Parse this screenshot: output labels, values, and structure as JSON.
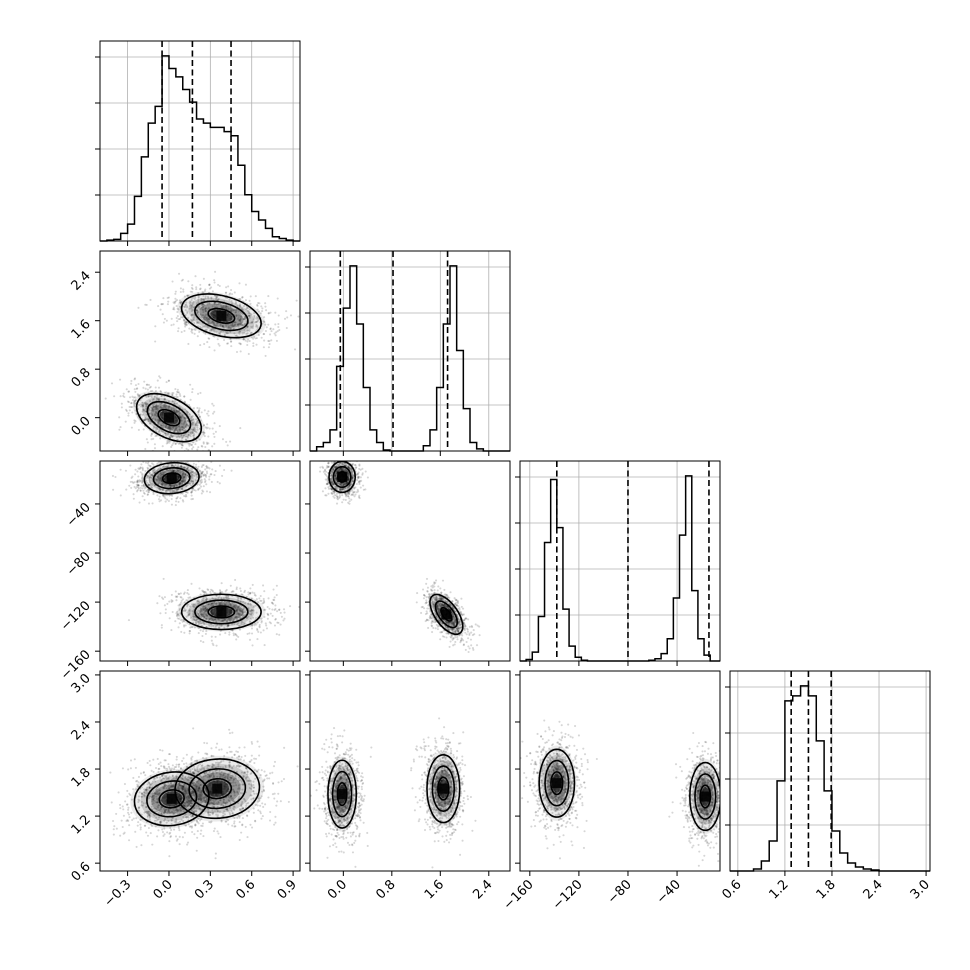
{
  "chart_data": {
    "type": "corner",
    "n_params": 4,
    "grid": true,
    "params": [
      {
        "range": [
          -0.5,
          0.95
        ],
        "ticks": [
          -0.3,
          0.0,
          0.3,
          0.6,
          0.9
        ],
        "tick_labels": [
          "−0.3",
          "0.0",
          "0.3",
          "0.6",
          "0.9"
        ],
        "quantiles": [
          -0.05,
          0.17,
          0.45
        ]
      },
      {
        "range": [
          -0.55,
          2.75
        ],
        "ticks": [
          0.0,
          0.8,
          1.6,
          2.4
        ],
        "tick_labels": [
          "0.0",
          "0.8",
          "1.6",
          "2.4"
        ],
        "quantiles": [
          -0.05,
          0.82,
          1.72
        ]
      },
      {
        "range": [
          -168,
          -5
        ],
        "ticks": [
          -160,
          -120,
          -80,
          -40
        ],
        "tick_labels": [
          "−160",
          "−120",
          "−80",
          "−40"
        ],
        "quantiles": [
          -138,
          -80,
          -14
        ]
      },
      {
        "range": [
          0.5,
          3.05
        ],
        "ticks": [
          0.6,
          1.2,
          1.8,
          2.4,
          3.0
        ],
        "tick_labels": [
          "0.6",
          "1.2",
          "1.8",
          "2.4",
          "3.0"
        ],
        "quantiles": [
          1.28,
          1.5,
          1.79
        ]
      }
    ],
    "histograms": [
      {
        "param": 0,
        "bin_edges": [
          -0.5,
          -0.45,
          -0.4,
          -0.35,
          -0.3,
          -0.25,
          -0.2,
          -0.15,
          -0.1,
          -0.05,
          0.0,
          0.05,
          0.1,
          0.15,
          0.2,
          0.25,
          0.3,
          0.35,
          0.4,
          0.45,
          0.5,
          0.55,
          0.6,
          0.65,
          0.7,
          0.75,
          0.8,
          0.85,
          0.9,
          0.95
        ],
        "counts": [
          0,
          1,
          2,
          9,
          20,
          53,
          100,
          140,
          160,
          220,
          205,
          195,
          180,
          165,
          145,
          140,
          135,
          135,
          130,
          125,
          90,
          55,
          35,
          25,
          15,
          5,
          3,
          1,
          0
        ]
      },
      {
        "param": 1,
        "bin_edges": [
          -0.55,
          -0.44,
          -0.33,
          -0.22,
          -0.11,
          0.0,
          0.11,
          0.22,
          0.33,
          0.44,
          0.55,
          0.66,
          0.77,
          0.88,
          0.99,
          1.1,
          1.21,
          1.32,
          1.43,
          1.54,
          1.65,
          1.76,
          1.87,
          1.98,
          2.09,
          2.2,
          2.31,
          2.42,
          2.53,
          2.64,
          2.75
        ],
        "counts": [
          0,
          4,
          8,
          20,
          80,
          135,
          175,
          120,
          60,
          20,
          8,
          1,
          0,
          0,
          0,
          0,
          0,
          5,
          20,
          60,
          120,
          175,
          95,
          40,
          8,
          2,
          0,
          0,
          0,
          0
        ]
      },
      {
        "param": 2,
        "bin_edges": [
          -168,
          -163,
          -158,
          -153,
          -148,
          -143,
          -138,
          -133,
          -128,
          -123,
          -118,
          -113,
          -108,
          -103,
          -98,
          -93,
          -88,
          -83,
          -78,
          -73,
          -68,
          -63,
          -58,
          -53,
          -48,
          -43,
          -38,
          -33,
          -28,
          -23,
          -18,
          -13,
          -8,
          -5
        ],
        "counts": [
          0,
          2,
          12,
          60,
          160,
          245,
          180,
          70,
          20,
          5,
          1,
          0,
          0,
          0,
          0,
          0,
          0,
          0,
          0,
          0,
          0,
          1,
          3,
          10,
          30,
          85,
          170,
          250,
          95,
          30,
          8,
          0,
          0
        ],
        "_note": ""
      },
      {
        "param": 3,
        "bin_edges": [
          0.5,
          0.6,
          0.7,
          0.8,
          0.9,
          1.0,
          1.1,
          1.2,
          1.3,
          1.4,
          1.5,
          1.6,
          1.7,
          1.8,
          1.9,
          2.0,
          2.1,
          2.2,
          2.3,
          2.4,
          2.5,
          2.6,
          2.7,
          2.8,
          2.9,
          3.0,
          3.05
        ],
        "counts": [
          0,
          0,
          0,
          2,
          10,
          30,
          90,
          170,
          175,
          185,
          175,
          130,
          80,
          40,
          18,
          8,
          4,
          2,
          1,
          0,
          0,
          0,
          0,
          0,
          0,
          0
        ]
      }
    ],
    "pairs": [
      {
        "x": 0,
        "y": 1,
        "modes": [
          {
            "center": [
              0.0,
              0.0
            ],
            "sigma": [
              0.13,
              0.22
            ],
            "rho": -0.45
          },
          {
            "center": [
              0.38,
              1.68
            ],
            "sigma": [
              0.16,
              0.2
            ],
            "rho": -0.35
          }
        ]
      },
      {
        "x": 0,
        "y": 2,
        "modes": [
          {
            "center": [
              0.02,
              -19
            ],
            "sigma": [
              0.11,
              7
            ],
            "rho": 0.1
          },
          {
            "center": [
              0.38,
              -128
            ],
            "sigma": [
              0.16,
              8
            ],
            "rho": 0.0
          }
        ]
      },
      {
        "x": 1,
        "y": 2,
        "modes": [
          {
            "center": [
              -0.02,
              -18
            ],
            "sigma": [
              0.12,
              7
            ],
            "rho": 0.0
          },
          {
            "center": [
              1.7,
              -130
            ],
            "sigma": [
              0.15,
              9
            ],
            "rho": -0.6
          }
        ]
      },
      {
        "x": 0,
        "y": 3,
        "modes": [
          {
            "center": [
              0.02,
              1.42
            ],
            "sigma": [
              0.15,
              0.19
            ],
            "rho": 0.1
          },
          {
            "center": [
              0.35,
              1.55
            ],
            "sigma": [
              0.17,
              0.21
            ],
            "rho": 0.05
          }
        ]
      },
      {
        "x": 1,
        "y": 3,
        "modes": [
          {
            "center": [
              -0.02,
              1.48
            ],
            "sigma": [
              0.13,
              0.24
            ],
            "rho": 0.0
          },
          {
            "center": [
              1.65,
              1.55
            ],
            "sigma": [
              0.15,
              0.24
            ],
            "rho": 0.0
          }
        ]
      },
      {
        "x": 2,
        "y": 3,
        "modes": [
          {
            "center": [
              -138,
              1.62
            ],
            "sigma": [
              8,
              0.24
            ],
            "rho": 0.0
          },
          {
            "center": [
              -17,
              1.45
            ],
            "sigma": [
              7,
              0.24
            ],
            "rho": 0.0
          }
        ]
      }
    ]
  }
}
